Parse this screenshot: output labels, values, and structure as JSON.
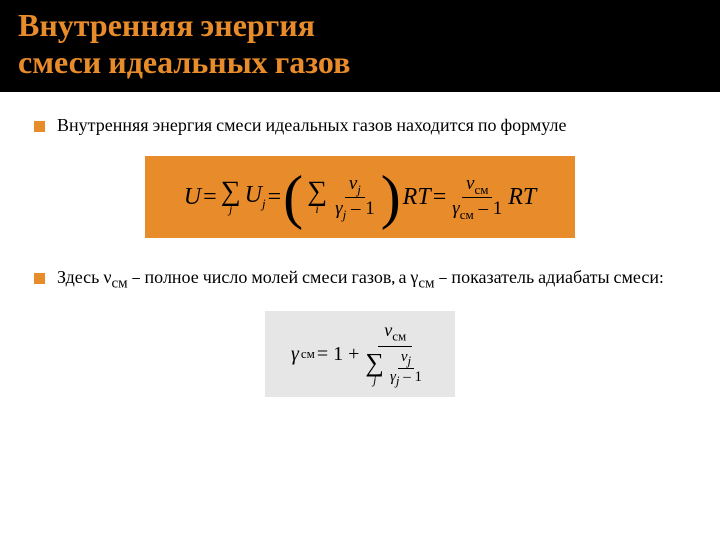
{
  "title": "Внутренняя энергия\nсмеси идеальных газов",
  "bullets": {
    "b1": "Внутренняя энергия смеси идеальных газов находится по формуле",
    "b2_pre": "Здесь ν",
    "b2_sub1": "см",
    "b2_mid": " – полное число молей смеси газов, а γ",
    "b2_sub2": "см",
    "b2_post": " – показатель адиабаты смеси:"
  },
  "f1": {
    "U": "U",
    "eq": " = ",
    "Uj": "U",
    "j": "j",
    "nu_j": "ν",
    "gamma_j": "γ",
    "minus1": " – 1",
    "RT": "RT",
    "nu_cm": "ν",
    "cm": "см",
    "gamma_cm": "γ"
  },
  "f2": {
    "gamma_cm": "γ",
    "cm": "см",
    "eq": " = 1 + ",
    "nu_cm": "ν",
    "nu_j": "ν",
    "j": "j",
    "gamma_j": "γ",
    "minus1": " – 1"
  },
  "colors": {
    "accent": "#e88b2a",
    "title_bg": "#000000",
    "formula2_bg": "#e6e6e6",
    "text": "#000000",
    "page_bg": "#ffffff"
  }
}
